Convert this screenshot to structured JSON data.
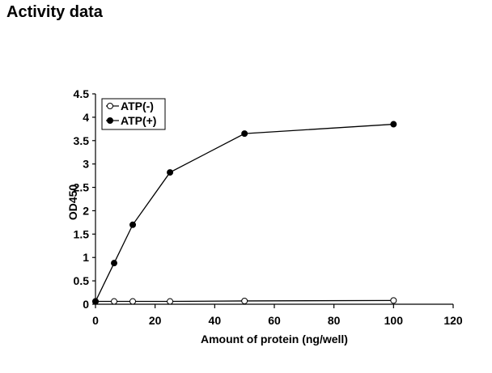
{
  "page": {
    "title": "Activity data"
  },
  "chart_data": {
    "type": "line",
    "title": "",
    "xlabel": "Amount of protein (ng/well)",
    "ylabel": "OD450",
    "xlim": [
      0,
      120
    ],
    "ylim": [
      0,
      4.5
    ],
    "xticks": [
      0,
      20,
      40,
      60,
      80,
      100,
      120
    ],
    "yticks": [
      0,
      0.5,
      1,
      1.5,
      2,
      2.5,
      3,
      3.5,
      4,
      4.5
    ],
    "xtick_labels": [
      "0",
      "20",
      "40",
      "60",
      "80",
      "100",
      "120"
    ],
    "ytick_labels": [
      "0",
      "0.5",
      "1",
      "1.5",
      "2",
      "2.5",
      "3",
      "3.5",
      "4",
      "4.5"
    ],
    "grid": false,
    "legend": "top-left",
    "series": [
      {
        "name": "ATP(-)",
        "marker": "open-circle",
        "color": "#000000",
        "x": [
          0,
          6.25,
          12.5,
          25,
          50,
          100
        ],
        "y": [
          0.06,
          0.06,
          0.06,
          0.06,
          0.07,
          0.08
        ]
      },
      {
        "name": "ATP(+)",
        "marker": "filled-circle",
        "color": "#000000",
        "x": [
          0,
          6.25,
          12.5,
          25,
          50,
          100
        ],
        "y": [
          0.06,
          0.88,
          1.7,
          2.82,
          3.65,
          3.85
        ]
      }
    ]
  }
}
